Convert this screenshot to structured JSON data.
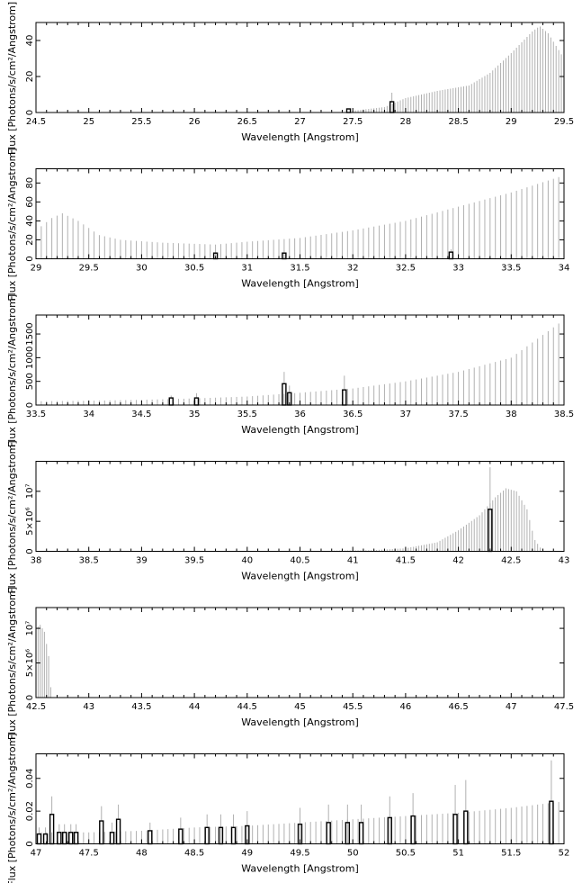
{
  "figure": {
    "background": "#ffffff",
    "axis_color": "#000000",
    "spectrum_color": "#b0b0b0",
    "line_color": "#000000"
  },
  "chart_data": [
    {
      "type": "bar",
      "xlabel": "Wavelength [Angstrom]",
      "ylabel": "Flux [Photons/s/cm²/Angstrom]",
      "xlim": [
        24.5,
        29.5
      ],
      "ylim": [
        0,
        50
      ],
      "xticks": [
        24.5,
        25,
        25.5,
        26,
        26.5,
        27,
        27.5,
        28,
        28.5,
        29,
        29.5
      ],
      "xtick_labels": [
        "24.5",
        "25",
        "25.5",
        "26",
        "26.5",
        "27",
        "27.5",
        "28",
        "28.5",
        "29",
        "29.5"
      ],
      "yticks": [
        0,
        20,
        40
      ],
      "ytick_labels": [
        "0",
        "20",
        "40"
      ],
      "continuum": {
        "start": 27.5,
        "end": 29.5,
        "step": 0.025,
        "knots": [
          [
            27.5,
            1
          ],
          [
            27.8,
            3
          ],
          [
            28.0,
            8
          ],
          [
            28.3,
            12
          ],
          [
            28.6,
            15
          ],
          [
            28.8,
            22
          ],
          [
            29.0,
            33
          ],
          [
            29.2,
            45
          ],
          [
            29.27,
            48
          ],
          [
            29.35,
            44
          ],
          [
            29.5,
            30
          ]
        ]
      },
      "lines": [
        {
          "x": 27.46,
          "y": 2,
          "err": 0
        },
        {
          "x": 27.87,
          "y": 6,
          "err": 5
        }
      ]
    },
    {
      "type": "bar",
      "xlabel": "Wavelength [Angstrom]",
      "ylabel": "Flux [Photons/s/cm²/Angstrom]",
      "xlim": [
        29,
        34
      ],
      "ylim": [
        0,
        95
      ],
      "xticks": [
        29,
        29.5,
        30,
        30.5,
        31,
        31.5,
        32,
        32.5,
        33,
        33.5,
        34
      ],
      "xtick_labels": [
        "29",
        "29.5",
        "30",
        "30.5",
        "31",
        "31.5",
        "32",
        "32.5",
        "33",
        "33.5",
        "34"
      ],
      "yticks": [
        0,
        20,
        40,
        60,
        80
      ],
      "ytick_labels": [
        "0",
        "20",
        "40",
        "60",
        "80"
      ],
      "continuum": {
        "start": 29.0,
        "end": 34.0,
        "step": 0.05,
        "knots": [
          [
            29.0,
            30
          ],
          [
            29.15,
            43
          ],
          [
            29.25,
            48
          ],
          [
            29.4,
            40
          ],
          [
            29.6,
            25
          ],
          [
            29.8,
            20
          ],
          [
            30.2,
            17
          ],
          [
            30.7,
            15
          ],
          [
            31.0,
            18
          ],
          [
            31.5,
            22
          ],
          [
            32.0,
            30
          ],
          [
            32.5,
            40
          ],
          [
            33.0,
            55
          ],
          [
            33.5,
            70
          ],
          [
            34.0,
            88
          ]
        ]
      },
      "lines": [
        {
          "x": 30.7,
          "y": 6,
          "err": 0
        },
        {
          "x": 31.35,
          "y": 6,
          "err": 3
        },
        {
          "x": 32.93,
          "y": 7,
          "err": 3
        }
      ]
    },
    {
      "type": "bar",
      "xlabel": "Wavelength [Angstrom]",
      "ylabel": "Flux [Photons/s/cm²/Angstrom]",
      "xlim": [
        33.5,
        38.5
      ],
      "ylim": [
        0,
        1900
      ],
      "xticks": [
        33.5,
        34,
        34.5,
        35,
        35.5,
        36,
        36.5,
        37,
        37.5,
        38,
        38.5
      ],
      "xtick_labels": [
        "33.5",
        "34",
        "34.5",
        "35",
        "35.5",
        "36",
        "36.5",
        "37",
        "37.5",
        "38",
        "38.5"
      ],
      "yticks": [
        0,
        500,
        1000,
        1500
      ],
      "ytick_labels": [
        "0",
        "500",
        "1000",
        "1500"
      ],
      "continuum": {
        "start": 33.5,
        "end": 38.5,
        "step": 0.05,
        "knots": [
          [
            33.5,
            80
          ],
          [
            34.0,
            90
          ],
          [
            34.5,
            110
          ],
          [
            35.0,
            140
          ],
          [
            35.5,
            180
          ],
          [
            36.0,
            260
          ],
          [
            36.5,
            350
          ],
          [
            37.0,
            500
          ],
          [
            37.5,
            700
          ],
          [
            38.0,
            1000
          ],
          [
            38.5,
            1800
          ]
        ]
      },
      "lines": [
        {
          "x": 34.78,
          "y": 150,
          "err": 50
        },
        {
          "x": 35.02,
          "y": 150,
          "err": 100
        },
        {
          "x": 35.85,
          "y": 450,
          "err": 250
        },
        {
          "x": 35.9,
          "y": 260,
          "err": 150
        },
        {
          "x": 36.42,
          "y": 320,
          "err": 300
        }
      ]
    },
    {
      "type": "bar",
      "xlabel": "Wavelength [Angstrom]",
      "ylabel": "Flux [Photons/s/cm²/Angstrom]",
      "xlim": [
        38,
        43
      ],
      "ylim": [
        0,
        15000000
      ],
      "xticks": [
        38,
        38.5,
        39,
        39.5,
        40,
        40.5,
        41,
        41.5,
        42,
        42.5,
        43
      ],
      "xtick_labels": [
        "38",
        "38.5",
        "39",
        "39.5",
        "40",
        "40.5",
        "41",
        "41.5",
        "42",
        "42.5",
        "43"
      ],
      "yticks": [
        0,
        5000000,
        10000000
      ],
      "ytick_labels": [
        "0",
        "5×10⁶",
        "10⁷"
      ],
      "continuum": {
        "start": 40.8,
        "end": 42.8,
        "step": 0.025,
        "knots": [
          [
            40.8,
            100000
          ],
          [
            41.2,
            200000
          ],
          [
            41.5,
            500000
          ],
          [
            41.8,
            1500000
          ],
          [
            42.0,
            3500000
          ],
          [
            42.2,
            6000000
          ],
          [
            42.35,
            9000000
          ],
          [
            42.45,
            10500000
          ],
          [
            42.55,
            10000000
          ],
          [
            42.65,
            7000000
          ],
          [
            42.72,
            2000000
          ],
          [
            42.8,
            0
          ]
        ]
      },
      "lines": [
        {
          "x": 42.3,
          "y": 7000000,
          "err": 7000000
        }
      ]
    },
    {
      "type": "bar",
      "xlabel": "Wavelength [Angstrom]",
      "ylabel": "Flux [Photons/s/cm²/Angstrom]",
      "xlim": [
        42.5,
        47.5
      ],
      "ylim": [
        0,
        13000000
      ],
      "xticks": [
        42.5,
        43,
        43.5,
        44,
        44.5,
        45,
        45.5,
        46,
        46.5,
        47,
        47.5
      ],
      "xtick_labels": [
        "42.5",
        "43",
        "43.5",
        "44",
        "44.5",
        "45",
        "45.5",
        "46",
        "46.5",
        "47",
        "47.5"
      ],
      "yticks": [
        0,
        5000000,
        10000000
      ],
      "ytick_labels": [
        "0",
        "5×10⁶",
        "10⁷"
      ],
      "continuum": {
        "start": 42.5,
        "end": 42.66,
        "step": 0.02,
        "knots": [
          [
            42.5,
            10000000
          ],
          [
            42.54,
            10500000
          ],
          [
            42.58,
            9500000
          ],
          [
            42.62,
            6000000
          ],
          [
            42.64,
            1500000
          ],
          [
            42.66,
            0
          ]
        ]
      },
      "lines": []
    },
    {
      "type": "bar",
      "xlabel": "Wavelength [Angstrom]",
      "ylabel": "Flux [Photons/s/cm²/Angstrom]",
      "xlim": [
        47,
        52
      ],
      "ylim": [
        0,
        0.055
      ],
      "xticks": [
        47,
        47.5,
        48,
        48.5,
        49,
        49.5,
        50,
        50.5,
        51,
        51.5,
        52
      ],
      "xtick_labels": [
        "47",
        "47.5",
        "48",
        "48.5",
        "49",
        "49.5",
        "50",
        "50.5",
        "51",
        "51.5",
        "52"
      ],
      "yticks": [
        0,
        0.02,
        0.04
      ],
      "ytick_labels": [
        "0",
        "0.02",
        "0.04"
      ],
      "continuum": {
        "start": 47.0,
        "end": 52.0,
        "step": 0.05,
        "knots": [
          [
            47.0,
            0.007
          ],
          [
            47.5,
            0.007
          ],
          [
            48.0,
            0.008
          ],
          [
            48.5,
            0.01
          ],
          [
            49.0,
            0.011
          ],
          [
            49.5,
            0.013
          ],
          [
            50.0,
            0.015
          ],
          [
            50.5,
            0.017
          ],
          [
            51.0,
            0.019
          ],
          [
            51.5,
            0.022
          ],
          [
            52.0,
            0.026
          ]
        ]
      },
      "lines": [
        {
          "x": 47.03,
          "y": 0.006,
          "err": 0.004
        },
        {
          "x": 47.09,
          "y": 0.006,
          "err": 0.004
        },
        {
          "x": 47.15,
          "y": 0.018,
          "err": 0.011
        },
        {
          "x": 47.22,
          "y": 0.007,
          "err": 0.005
        },
        {
          "x": 47.27,
          "y": 0.007,
          "err": 0.005
        },
        {
          "x": 47.33,
          "y": 0.007,
          "err": 0.005
        },
        {
          "x": 47.38,
          "y": 0.007,
          "err": 0.005
        },
        {
          "x": 47.62,
          "y": 0.014,
          "err": 0.009
        },
        {
          "x": 47.72,
          "y": 0.007,
          "err": 0.006
        },
        {
          "x": 47.78,
          "y": 0.015,
          "err": 0.009
        },
        {
          "x": 48.08,
          "y": 0.008,
          "err": 0.005
        },
        {
          "x": 48.37,
          "y": 0.009,
          "err": 0.007
        },
        {
          "x": 48.62,
          "y": 0.01,
          "err": 0.008
        },
        {
          "x": 48.75,
          "y": 0.01,
          "err": 0.008
        },
        {
          "x": 48.87,
          "y": 0.01,
          "err": 0.008
        },
        {
          "x": 49.0,
          "y": 0.011,
          "err": 0.009
        },
        {
          "x": 49.5,
          "y": 0.012,
          "err": 0.01
        },
        {
          "x": 49.77,
          "y": 0.013,
          "err": 0.011
        },
        {
          "x": 49.95,
          "y": 0.013,
          "err": 0.011
        },
        {
          "x": 50.08,
          "y": 0.013,
          "err": 0.011
        },
        {
          "x": 50.35,
          "y": 0.016,
          "err": 0.013
        },
        {
          "x": 50.57,
          "y": 0.017,
          "err": 0.014
        },
        {
          "x": 50.97,
          "y": 0.018,
          "err": 0.018
        },
        {
          "x": 51.07,
          "y": 0.02,
          "err": 0.019
        },
        {
          "x": 51.88,
          "y": 0.026,
          "err": 0.025
        }
      ]
    }
  ]
}
